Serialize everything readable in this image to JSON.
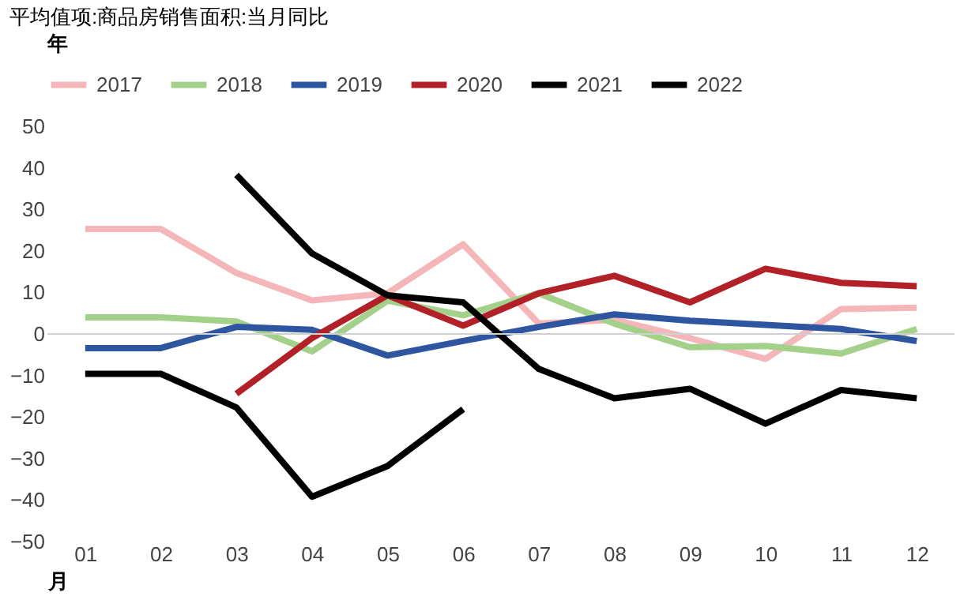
{
  "chart_data": {
    "type": "line",
    "title": "平均值项:商品房销售面积:当月同比",
    "legend_title": "年",
    "xlabel": "月",
    "categories": [
      "01",
      "02",
      "03",
      "04",
      "05",
      "06",
      "07",
      "08",
      "09",
      "10",
      "11",
      "12"
    ],
    "series": [
      {
        "name": "2017",
        "color": "#f4b6b8",
        "values": [
          25.3,
          25.3,
          14.7,
          8.1,
          9.8,
          21.6,
          2.5,
          3.4,
          -1,
          -6,
          6,
          6.3
        ]
      },
      {
        "name": "2018",
        "color": "#a3d18a",
        "values": [
          4,
          4,
          3,
          -4.2,
          8,
          4.5,
          9.8,
          2.5,
          -3.2,
          -2.9,
          -4.7,
          1.2
        ]
      },
      {
        "name": "2019",
        "color": "#2e56a0",
        "values": [
          -3.4,
          -3.4,
          1.7,
          1,
          -5.2,
          -1.7,
          1.7,
          4.7,
          3.2,
          2.2,
          1.2,
          -1.7
        ]
      },
      {
        "name": "2020",
        "color": "#b22028",
        "values": [
          null,
          null,
          -14.4,
          -1,
          9.3,
          2,
          9.8,
          14,
          7.6,
          15.7,
          12.3,
          11.5
        ]
      },
      {
        "name": "2021",
        "color": "#000000",
        "values": [
          null,
          null,
          38.3,
          19.4,
          9.3,
          7.6,
          -8.4,
          -15.5,
          -13.2,
          -21.6,
          -13.5,
          -15.5
        ]
      },
      {
        "name": "2022",
        "color": "#000000",
        "values": [
          -9.6,
          -9.6,
          -17.7,
          -39.2,
          -31.8,
          -18.1,
          null,
          null,
          null,
          null,
          null,
          null
        ]
      }
    ],
    "ylim": [
      -50,
      50
    ],
    "yticks": [
      -50,
      -40,
      -30,
      -20,
      -10,
      0,
      10,
      20,
      30,
      40,
      50
    ],
    "grid": false,
    "ref_lines": [
      {
        "axis": "y",
        "value": 0,
        "color": "#d0d0d0"
      }
    ],
    "legend": "top",
    "marker": "none",
    "line_style": "solid"
  }
}
